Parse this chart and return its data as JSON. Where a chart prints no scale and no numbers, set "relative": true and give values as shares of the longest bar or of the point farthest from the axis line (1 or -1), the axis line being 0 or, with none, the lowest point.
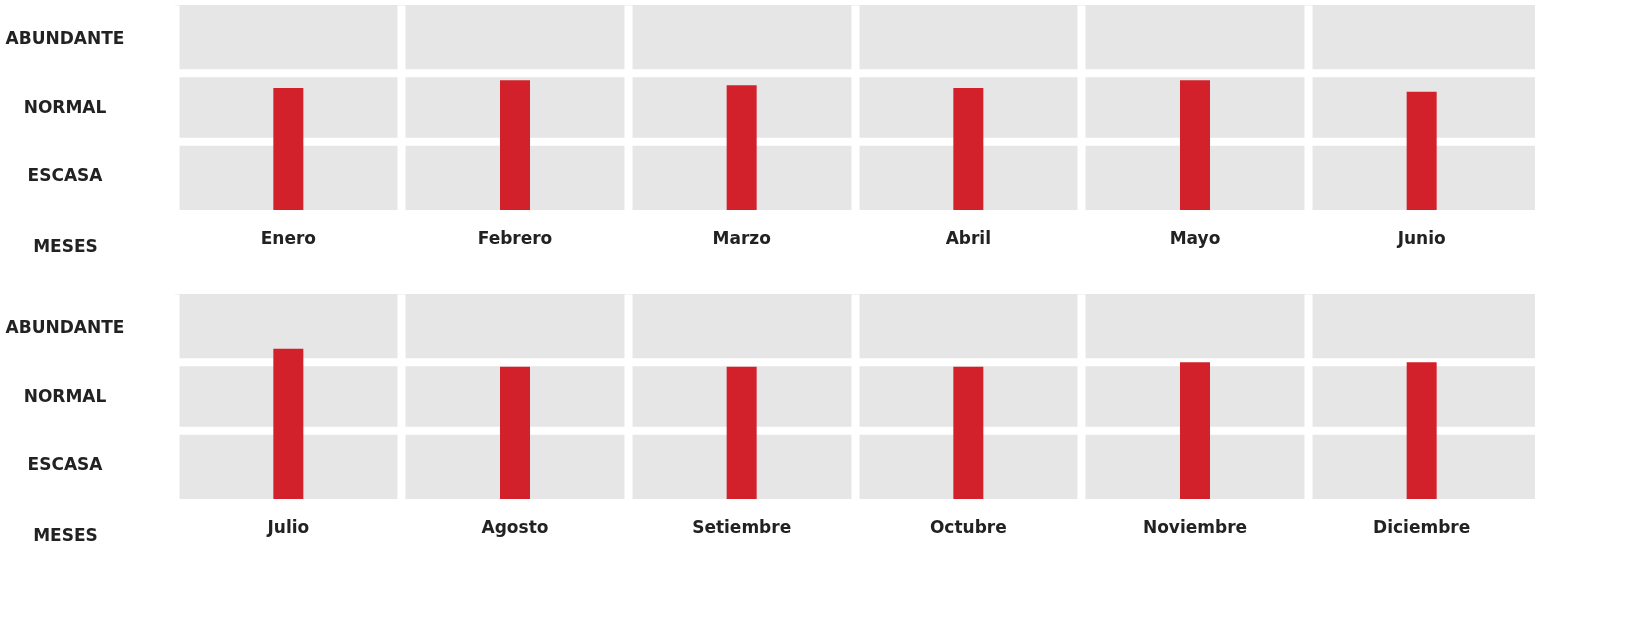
{
  "chart_data": [
    {
      "type": "bar",
      "categories": [
        "Enero",
        "Febrero",
        "Marzo",
        "Abril",
        "Mayo",
        "Junio"
      ],
      "values": [
        0.94,
        1,
        0.96,
        0.94,
        1,
        0.91
      ],
      "relative": true,
      "color": "#d3212b",
      "xlabel": "MESES",
      "annotations": [
        "ABUNDANTE",
        "NORMAL",
        "ESCASA"
      ],
      "grid": true
    },
    {
      "type": "bar",
      "categories": [
        "Julio",
        "Agosto",
        "Setiembre",
        "Octubre",
        "Noviembre",
        "Diciembre"
      ],
      "values": [
        1,
        0.88,
        0.88,
        0.88,
        0.91,
        0.91
      ],
      "relative": true,
      "color": "#d3212b",
      "xlabel": "MESES",
      "annotations": [
        "ABUNDANTE",
        "NORMAL",
        "ESCASA"
      ],
      "grid": true
    }
  ]
}
